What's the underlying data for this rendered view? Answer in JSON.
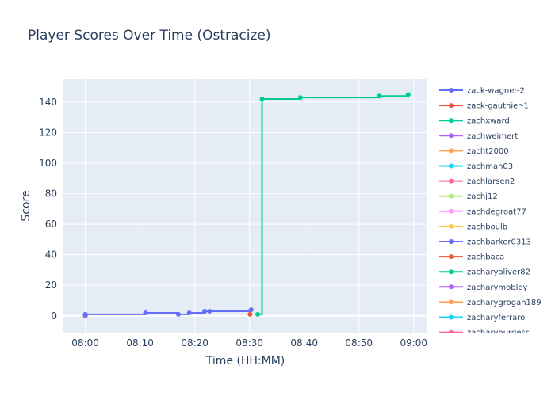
{
  "chart_data": {
    "type": "line",
    "title": "Player Scores Over Time (Ostracize)",
    "xlabel": "Time (HH:MM)",
    "ylabel": "Score",
    "x_ticks": [
      "08:00",
      "08:10",
      "08:20",
      "08:30",
      "08:40",
      "08:50",
      "09:00"
    ],
    "x_tick_minutes": [
      0,
      10,
      20,
      30,
      40,
      50,
      60
    ],
    "xlim_minutes": [
      -4,
      62.5
    ],
    "y_ticks": [
      0,
      20,
      40,
      60,
      80,
      100,
      120,
      140
    ],
    "ylim": [
      -11,
      155
    ],
    "grid": true,
    "legend_position": "right",
    "series": [
      {
        "name": "zack-wagner-2",
        "color": "#636efa",
        "x": [
          0,
          11,
          17,
          19,
          21.8,
          22.7,
          30.3
        ],
        "y": [
          1,
          2,
          1,
          2,
          3,
          3,
          4
        ]
      },
      {
        "name": "zack-gauthier-1",
        "color": "#EF553B",
        "x": [
          30.1
        ],
        "y": [
          1
        ]
      },
      {
        "name": "zachxward",
        "color": "#00cc96",
        "x": [
          31.5,
          32.3,
          39.3,
          53.7,
          59
        ],
        "y": [
          1,
          142,
          143,
          144,
          145
        ]
      },
      {
        "name": "zachweimert",
        "color": "#ab63fa",
        "x": [
          0
        ],
        "y": [
          0
        ]
      },
      {
        "name": "zacht2000",
        "color": "#FFA15A",
        "x": [
          0
        ],
        "y": [
          0
        ]
      },
      {
        "name": "zachman03",
        "color": "#19d3f3",
        "x": [
          0
        ],
        "y": [
          0
        ]
      },
      {
        "name": "zachlarsen2",
        "color": "#FF6692",
        "x": [
          0
        ],
        "y": [
          0
        ]
      },
      {
        "name": "zachj12",
        "color": "#B6E880",
        "x": [
          0
        ],
        "y": [
          0
        ]
      },
      {
        "name": "zachdegroat77",
        "color": "#FF97FF",
        "x": [
          0
        ],
        "y": [
          0
        ]
      },
      {
        "name": "zachboulb",
        "color": "#FECB52",
        "x": [
          0
        ],
        "y": [
          0
        ]
      },
      {
        "name": "zachbarker0313",
        "color": "#636efa",
        "x": [
          0
        ],
        "y": [
          0
        ]
      },
      {
        "name": "zachbaca",
        "color": "#EF553B",
        "x": [
          0
        ],
        "y": [
          0
        ]
      },
      {
        "name": "zacharyoliver82",
        "color": "#00cc96",
        "x": [
          0
        ],
        "y": [
          0
        ]
      },
      {
        "name": "zacharymobley",
        "color": "#ab63fa",
        "x": [
          0
        ],
        "y": [
          0
        ]
      },
      {
        "name": "zacharygrogan189",
        "color": "#FFA15A",
        "x": [
          0
        ],
        "y": [
          0
        ]
      },
      {
        "name": "zacharyferraro",
        "color": "#19d3f3",
        "x": [
          0
        ],
        "y": [
          0
        ]
      },
      {
        "name": "zacharyburgess",
        "color": "#FF6692",
        "x": [
          0
        ],
        "y": [
          0
        ]
      }
    ]
  }
}
